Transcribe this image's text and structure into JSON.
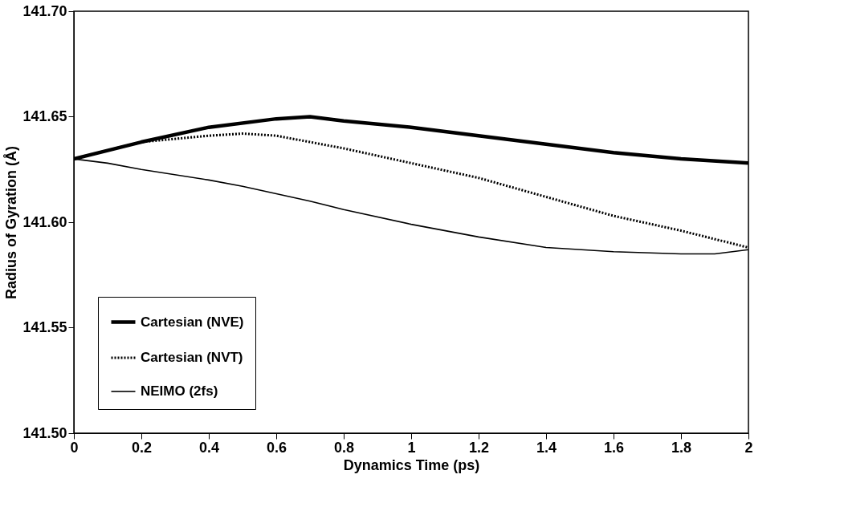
{
  "chart_data": {
    "type": "line",
    "xlabel": "Dynamics Time (ps)",
    "ylabel": "Radius of Gyration (Å)",
    "xlim": [
      0,
      2
    ],
    "xticks": [
      0,
      0.2,
      0.4,
      0.6,
      0.8,
      1,
      1.2,
      1.4,
      1.6,
      1.8,
      2
    ],
    "ylim": [
      141.5,
      141.7
    ],
    "yticks": [
      {
        "value": 141.5,
        "label": "141.50"
      },
      {
        "value": 141.55,
        "label": "141.55"
      },
      {
        "value": 141.6,
        "label": "141.60"
      },
      {
        "value": 141.65,
        "label": "141.65"
      },
      {
        "value": 141.7,
        "label": "141.70"
      }
    ],
    "grid": false,
    "legend": "bottom left",
    "marker": "none",
    "series": [
      {
        "name": "Cartesian (NVE)",
        "color": "#000000",
        "line_style": "solid",
        "x": [
          0,
          0.2,
          0.4,
          0.6,
          0.7,
          0.8,
          1.0,
          1.2,
          1.4,
          1.6,
          1.8,
          2.0
        ],
        "values": [
          141.63,
          141.638,
          141.645,
          141.649,
          141.65,
          141.648,
          141.645,
          141.641,
          141.637,
          141.633,
          141.63,
          141.628
        ]
      },
      {
        "name": "Cartesian (NVT)",
        "color": "#000000",
        "line_style": "dotted",
        "x": [
          0,
          0.2,
          0.4,
          0.5,
          0.6,
          0.8,
          1.0,
          1.2,
          1.4,
          1.6,
          1.8,
          2.0
        ],
        "values": [
          141.63,
          141.638,
          141.641,
          141.642,
          141.641,
          141.635,
          141.628,
          141.621,
          141.612,
          141.603,
          141.596,
          141.588
        ]
      },
      {
        "name": "NEIMO (2fs)",
        "color": "#000000",
        "line_style": "solid",
        "x": [
          0,
          0.1,
          0.2,
          0.4,
          0.5,
          0.7,
          0.8,
          1.0,
          1.2,
          1.4,
          1.6,
          1.8,
          1.9,
          2.0
        ],
        "values": [
          141.63,
          141.628,
          141.625,
          141.62,
          141.617,
          141.61,
          141.606,
          141.599,
          141.593,
          141.588,
          141.586,
          141.585,
          141.585,
          141.587
        ]
      }
    ]
  }
}
